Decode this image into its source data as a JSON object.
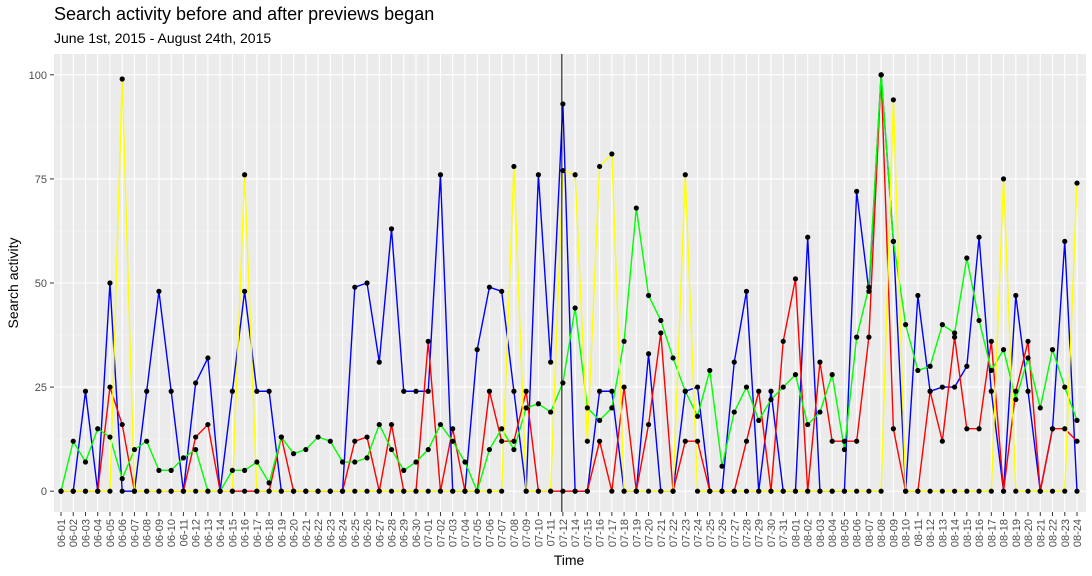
{
  "chart_data": {
    "type": "line",
    "title": "Search activity before and after previews began",
    "subtitle": "June 1st, 2015 - August 24th, 2015",
    "xlabel": "Time",
    "ylabel": "Search activity",
    "ylim": [
      -5,
      105
    ],
    "yticks": [
      0,
      25,
      50,
      75,
      100
    ],
    "grid": true,
    "legend": "none",
    "vline_at": "07-12",
    "categories": [
      "06-01",
      "06-02",
      "06-03",
      "06-04",
      "06-05",
      "06-06",
      "06-07",
      "06-08",
      "06-09",
      "06-10",
      "06-11",
      "06-12",
      "06-13",
      "06-14",
      "06-15",
      "06-16",
      "06-17",
      "06-18",
      "06-19",
      "06-20",
      "06-21",
      "06-22",
      "06-23",
      "06-24",
      "06-25",
      "06-26",
      "06-27",
      "06-28",
      "06-29",
      "06-30",
      "07-01",
      "07-02",
      "07-03",
      "07-04",
      "07-05",
      "07-06",
      "07-07",
      "07-08",
      "07-09",
      "07-10",
      "07-11",
      "07-12",
      "07-14",
      "07-15",
      "07-16",
      "07-17",
      "07-18",
      "07-19",
      "07-20",
      "07-21",
      "07-22",
      "07-23",
      "07-24",
      "07-25",
      "07-26",
      "07-27",
      "07-28",
      "07-29",
      "07-30",
      "07-31",
      "08-01",
      "08-02",
      "08-03",
      "08-04",
      "08-05",
      "08-06",
      "08-07",
      "08-08",
      "08-09",
      "08-10",
      "08-11",
      "08-12",
      "08-13",
      "08-14",
      "08-15",
      "08-16",
      "08-17",
      "08-18",
      "08-19",
      "08-20",
      "08-21",
      "08-22",
      "08-23",
      "08-24"
    ],
    "series": [
      {
        "color": "#0000ff",
        "values": [
          0,
          0,
          24,
          0,
          50,
          0,
          0,
          24,
          48,
          24,
          0,
          26,
          32,
          0,
          24,
          48,
          24,
          24,
          0,
          0,
          0,
          0,
          0,
          0,
          49,
          50,
          31,
          63,
          24,
          24,
          24,
          76,
          0,
          0,
          34,
          49,
          48,
          24,
          0,
          76,
          31,
          93,
          0,
          0,
          24,
          24,
          0,
          0,
          33,
          0,
          0,
          24,
          25,
          0,
          0,
          31,
          48,
          0,
          24,
          0,
          0,
          61,
          0,
          0,
          0,
          72,
          48,
          100,
          60,
          0,
          47,
          24,
          25,
          25,
          30,
          61,
          24,
          0,
          47,
          24,
          0,
          15,
          60,
          0
        ]
      },
      {
        "color": "#ff0000",
        "values": [
          0,
          0,
          0,
          0,
          25,
          16,
          0,
          0,
          0,
          0,
          0,
          13,
          16,
          0,
          0,
          0,
          0,
          0,
          13,
          0,
          0,
          0,
          0,
          0,
          12,
          13,
          0,
          16,
          0,
          0,
          36,
          0,
          15,
          0,
          0,
          24,
          12,
          12,
          24,
          0,
          0,
          0,
          0,
          0,
          12,
          0,
          25,
          0,
          16,
          38,
          0,
          12,
          12,
          0,
          0,
          0,
          12,
          24,
          0,
          36,
          51,
          0,
          31,
          12,
          12,
          12,
          37,
          100,
          15,
          0,
          0,
          24,
          12,
          37,
          15,
          15,
          36,
          0,
          24,
          36,
          0,
          15,
          15,
          12
        ]
      },
      {
        "color": "#00ff00",
        "values": [
          0,
          12,
          7,
          15,
          13,
          3,
          10,
          12,
          5,
          5,
          8,
          10,
          0,
          0,
          5,
          5,
          7,
          2,
          13,
          9,
          10,
          13,
          12,
          7,
          7,
          8,
          16,
          10,
          5,
          7,
          10,
          16,
          12,
          7,
          0,
          10,
          15,
          10,
          20,
          21,
          19,
          26,
          44,
          20,
          17,
          20,
          36,
          68,
          47,
          41,
          32,
          24,
          18,
          29,
          6,
          19,
          25,
          17,
          22,
          25,
          28,
          16,
          19,
          28,
          10,
          37,
          49,
          100,
          60,
          40,
          29,
          30,
          40,
          38,
          56,
          41,
          29,
          34,
          22,
          32,
          20,
          34,
          25,
          17
        ]
      },
      {
        "color": "#ffff00",
        "values": [
          0,
          0,
          0,
          0,
          0,
          99,
          0,
          0,
          0,
          0,
          0,
          0,
          0,
          0,
          0,
          76,
          0,
          0,
          0,
          0,
          0,
          0,
          0,
          0,
          0,
          0,
          0,
          0,
          0,
          0,
          0,
          0,
          0,
          0,
          0,
          0,
          0,
          78,
          0,
          0,
          0,
          77,
          76,
          12,
          78,
          81,
          0,
          0,
          0,
          0,
          0,
          76,
          0,
          0,
          0,
          0,
          0,
          0,
          0,
          0,
          0,
          0,
          0,
          0,
          0,
          0,
          0,
          0,
          94,
          0,
          0,
          0,
          0,
          0,
          0,
          0,
          0,
          75,
          0,
          0,
          0,
          0,
          0,
          74
        ]
      }
    ]
  }
}
